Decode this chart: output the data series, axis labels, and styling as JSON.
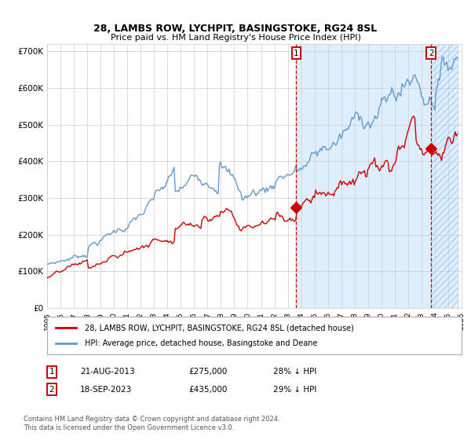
{
  "title": "28, LAMBS ROW, LYCHPIT, BASINGSTOKE, RG24 8SL",
  "subtitle": "Price paid vs. HM Land Registry's House Price Index (HPI)",
  "legend_red": "28, LAMBS ROW, LYCHPIT, BASINGSTOKE, RG24 8SL (detached house)",
  "legend_blue": "HPI: Average price, detached house, Basingstoke and Deane",
  "annotation1_date": "21-AUG-2013",
  "annotation1_price": "£275,000",
  "annotation1_hpi": "28% ↓ HPI",
  "annotation1_year": 2013.64,
  "annotation1_value": 275000,
  "annotation2_date": "18-SEP-2023",
  "annotation2_price": "£435,000",
  "annotation2_hpi": "29% ↓ HPI",
  "annotation2_year": 2023.72,
  "annotation2_value": 435000,
  "footer": "Contains HM Land Registry data © Crown copyright and database right 2024.\nThis data is licensed under the Open Government Licence v3.0.",
  "red_color": "#cc0000",
  "blue_color": "#6699cc",
  "highlight_fill": "#ddeeff",
  "background_color": "#ffffff",
  "grid_color": "#cccccc",
  "ylim": [
    0,
    720000
  ],
  "yticks": [
    0,
    100000,
    200000,
    300000,
    400000,
    500000,
    600000,
    700000
  ],
  "ytick_labels": [
    "£0",
    "£100K",
    "£200K",
    "£300K",
    "£400K",
    "£500K",
    "£600K",
    "£700K"
  ],
  "xstart": 1995.0,
  "xend": 2026.0
}
